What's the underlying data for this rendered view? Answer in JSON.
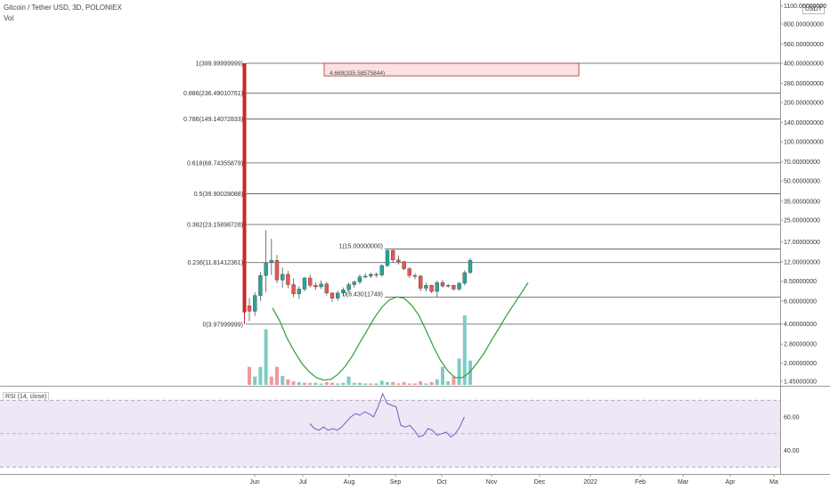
{
  "header": {
    "title": "Gitcoin / Tether USD, 3D, POLONIEX",
    "volume_label": "Vol",
    "currency_badge": "USDT"
  },
  "colors": {
    "up": "#26a69a",
    "down": "#ef5350",
    "volume_up": "#80cbc4",
    "volume_down": "#ef9a9a",
    "ma_line": "#2e9e3a",
    "rsi_line": "#7e57c2",
    "rsi_band": "#ede7f6",
    "fib_line": "#555555",
    "box_fill": "#fde0e0",
    "box_border": "#a33333",
    "spike": "#c62828"
  },
  "chart_data": [
    {
      "type": "candlestick",
      "title": "Gitcoin / Tether USD, 3D, POLONIEX",
      "price_axis": {
        "scale": "log",
        "tick_labels": [
          "1100.00000000",
          "800.00000000",
          "560.00000000",
          "400.00000000",
          "280.00000000",
          "200.00000000",
          "140.00000000",
          "100.00000000",
          "70.00000000",
          "50.00000000",
          "35.00000000",
          "25.00000000",
          "17.00000000",
          "12.00000000",
          "8.50000000",
          "6.00000000",
          "4.00000000",
          "2.80000000",
          "2.00000000",
          "1.45000000"
        ],
        "tick_values": [
          1100,
          800,
          560,
          400,
          280,
          200,
          140,
          100,
          70,
          50,
          35,
          25,
          17,
          12,
          8.5,
          6,
          4,
          2.8,
          2,
          1.45
        ],
        "unit": "USDT"
      },
      "time_axis": {
        "labels": [
          "Jun",
          "Jul",
          "Aug",
          "Sep",
          "Oct",
          "Nov",
          "Dec",
          "2022",
          "Feb",
          "Mar",
          "Apr",
          "Ma"
        ]
      },
      "fibonacci_levels": [
        {
          "label": "1(399.99999999)",
          "value": 399.99999999
        },
        {
          "label": "0.886(236.49010761)",
          "value": 236.49010761
        },
        {
          "label": "0.786(149.14072833)",
          "value": 149.14072833
        },
        {
          "label": "0.618(68.74355879)",
          "value": 68.74355879
        },
        {
          "label": "0.5(39.90028088)",
          "value": 39.90028088
        },
        {
          "label": "0.382(23.15898728)",
          "value": 23.15898728
        },
        {
          "label": "0.236(11.81412361)",
          "value": 11.81412361
        },
        {
          "label": "0(3.97999999)",
          "value": 3.97999999
        }
      ],
      "fibonacci_retracement_small": [
        {
          "label": "1(15.00000000)",
          "value": 15.0
        },
        {
          "label": "0(6.43011749)",
          "value": 6.43011749
        }
      ],
      "target_box": {
        "label": "4.669(335.58575844)",
        "value": 335.58575844,
        "top": 400
      },
      "spike_candle": {
        "open": 400,
        "close": 4.9,
        "high": 400,
        "low": 3.98
      },
      "candles": [
        {
          "o": 5.5,
          "h": 6.3,
          "l": 4.2,
          "c": 5.0
        },
        {
          "o": 5.0,
          "h": 7.0,
          "l": 4.6,
          "c": 6.6
        },
        {
          "o": 6.6,
          "h": 10.0,
          "l": 6.0,
          "c": 9.4
        },
        {
          "o": 9.4,
          "h": 21.0,
          "l": 7.0,
          "c": 11.8
        },
        {
          "o": 11.8,
          "h": 18.0,
          "l": 9.5,
          "c": 12.3
        },
        {
          "o": 12.3,
          "h": 13.5,
          "l": 8.2,
          "c": 8.7
        },
        {
          "o": 8.7,
          "h": 10.8,
          "l": 7.6,
          "c": 9.6
        },
        {
          "o": 9.6,
          "h": 10.2,
          "l": 7.5,
          "c": 8.0
        },
        {
          "o": 8.0,
          "h": 8.9,
          "l": 6.4,
          "c": 6.8
        },
        {
          "o": 6.8,
          "h": 7.8,
          "l": 6.2,
          "c": 7.4
        },
        {
          "o": 7.4,
          "h": 9.2,
          "l": 7.1,
          "c": 9.0
        },
        {
          "o": 9.0,
          "h": 9.5,
          "l": 7.6,
          "c": 7.9
        },
        {
          "o": 7.9,
          "h": 8.3,
          "l": 7.3,
          "c": 7.7
        },
        {
          "o": 7.7,
          "h": 8.6,
          "l": 7.4,
          "c": 8.1
        },
        {
          "o": 8.1,
          "h": 8.4,
          "l": 6.6,
          "c": 6.9
        },
        {
          "o": 6.9,
          "h": 7.0,
          "l": 5.9,
          "c": 6.3
        },
        {
          "o": 6.3,
          "h": 7.2,
          "l": 6.0,
          "c": 6.9
        },
        {
          "o": 6.9,
          "h": 7.6,
          "l": 6.5,
          "c": 7.3
        },
        {
          "o": 7.3,
          "h": 8.3,
          "l": 7.0,
          "c": 8.0
        },
        {
          "o": 8.0,
          "h": 8.6,
          "l": 7.6,
          "c": 8.4
        },
        {
          "o": 8.4,
          "h": 9.6,
          "l": 8.1,
          "c": 9.2
        },
        {
          "o": 9.2,
          "h": 9.8,
          "l": 8.9,
          "c": 9.3
        },
        {
          "o": 9.3,
          "h": 9.9,
          "l": 9.0,
          "c": 9.6
        },
        {
          "o": 9.6,
          "h": 9.9,
          "l": 9.1,
          "c": 9.5
        },
        {
          "o": 9.5,
          "h": 11.5,
          "l": 9.2,
          "c": 11.2
        },
        {
          "o": 11.2,
          "h": 15.0,
          "l": 10.9,
          "c": 14.6
        },
        {
          "o": 14.6,
          "h": 14.9,
          "l": 11.8,
          "c": 12.4
        },
        {
          "o": 12.4,
          "h": 13.4,
          "l": 11.4,
          "c": 12.0
        },
        {
          "o": 12.0,
          "h": 12.2,
          "l": 10.3,
          "c": 10.6
        },
        {
          "o": 10.6,
          "h": 10.9,
          "l": 9.0,
          "c": 9.4
        },
        {
          "o": 9.4,
          "h": 9.8,
          "l": 8.8,
          "c": 9.3
        },
        {
          "o": 9.3,
          "h": 9.5,
          "l": 7.1,
          "c": 7.5
        },
        {
          "o": 7.5,
          "h": 8.3,
          "l": 7.1,
          "c": 7.9
        },
        {
          "o": 7.9,
          "h": 8.0,
          "l": 6.9,
          "c": 7.1
        },
        {
          "o": 7.1,
          "h": 8.6,
          "l": 6.43,
          "c": 8.3
        },
        {
          "o": 8.3,
          "h": 8.7,
          "l": 7.6,
          "c": 7.8
        },
        {
          "o": 7.8,
          "h": 8.1,
          "l": 7.6,
          "c": 7.9
        },
        {
          "o": 7.9,
          "h": 8.0,
          "l": 7.2,
          "c": 7.4
        },
        {
          "o": 7.4,
          "h": 8.4,
          "l": 7.2,
          "c": 8.2
        },
        {
          "o": 8.2,
          "h": 10.3,
          "l": 7.9,
          "c": 9.9
        },
        {
          "o": 9.9,
          "h": 12.8,
          "l": 9.7,
          "c": 12.3
        }
      ],
      "volume": [
        {
          "v": 26,
          "up": false
        },
        {
          "v": 12,
          "up": true
        },
        {
          "v": 26,
          "up": true
        },
        {
          "v": 80,
          "up": true
        },
        {
          "v": 12,
          "up": false
        },
        {
          "v": 26,
          "up": false
        },
        {
          "v": 13,
          "up": true
        },
        {
          "v": 8,
          "up": false
        },
        {
          "v": 5,
          "up": false
        },
        {
          "v": 4,
          "up": true
        },
        {
          "v": 3,
          "up": false
        },
        {
          "v": 3,
          "up": false
        },
        {
          "v": 3,
          "up": true
        },
        {
          "v": 2,
          "up": true
        },
        {
          "v": 4,
          "up": false
        },
        {
          "v": 3,
          "up": false
        },
        {
          "v": 2,
          "up": true
        },
        {
          "v": 3,
          "up": true
        },
        {
          "v": 12,
          "up": true
        },
        {
          "v": 3,
          "up": true
        },
        {
          "v": 3,
          "up": true
        },
        {
          "v": 2,
          "up": true
        },
        {
          "v": 2,
          "up": false
        },
        {
          "v": 2,
          "up": true
        },
        {
          "v": 6,
          "up": true
        },
        {
          "v": 4,
          "up": true
        },
        {
          "v": 4,
          "up": false
        },
        {
          "v": 2,
          "up": false
        },
        {
          "v": 4,
          "up": false
        },
        {
          "v": 2,
          "up": false
        },
        {
          "v": 2,
          "up": false
        },
        {
          "v": 5,
          "up": false
        },
        {
          "v": 2,
          "up": true
        },
        {
          "v": 4,
          "up": false
        },
        {
          "v": 8,
          "up": true
        },
        {
          "v": 26,
          "up": true
        },
        {
          "v": 5,
          "up": true
        },
        {
          "v": 12,
          "up": false
        },
        {
          "v": 38,
          "up": true
        },
        {
          "v": 100,
          "up": true
        },
        {
          "v": 35,
          "up": true
        }
      ],
      "moving_average": [
        5.3,
        4.2,
        3.1,
        2.45,
        2.0,
        1.72,
        1.55,
        1.48,
        1.5,
        1.65,
        1.9,
        2.3,
        2.9,
        3.6,
        4.5,
        5.4,
        6.1,
        6.45,
        6.3,
        5.6,
        4.7,
        3.6,
        2.7,
        2.1,
        1.75,
        1.55,
        1.55,
        1.7,
        2.0,
        2.4,
        3.0,
        3.7,
        4.6,
        5.6,
        6.8,
        8.3
      ]
    },
    {
      "type": "line",
      "title": "RSI (14, close)",
      "y_ticks": [
        60.0,
        40.0
      ],
      "y_tick_labels": [
        "60.00",
        "40.00"
      ],
      "band": [
        30,
        70
      ],
      "ylim": [
        28,
        76
      ],
      "series": [
        {
          "name": "RSI (14, close)",
          "values": [
            56,
            53,
            52,
            54,
            52,
            53,
            52,
            54,
            57,
            60,
            62,
            61,
            63,
            62,
            60,
            66,
            74,
            68,
            67,
            66,
            55,
            54,
            55,
            52,
            48,
            49,
            53,
            52,
            49,
            50,
            51,
            48,
            50,
            54,
            60
          ]
        }
      ]
    }
  ]
}
